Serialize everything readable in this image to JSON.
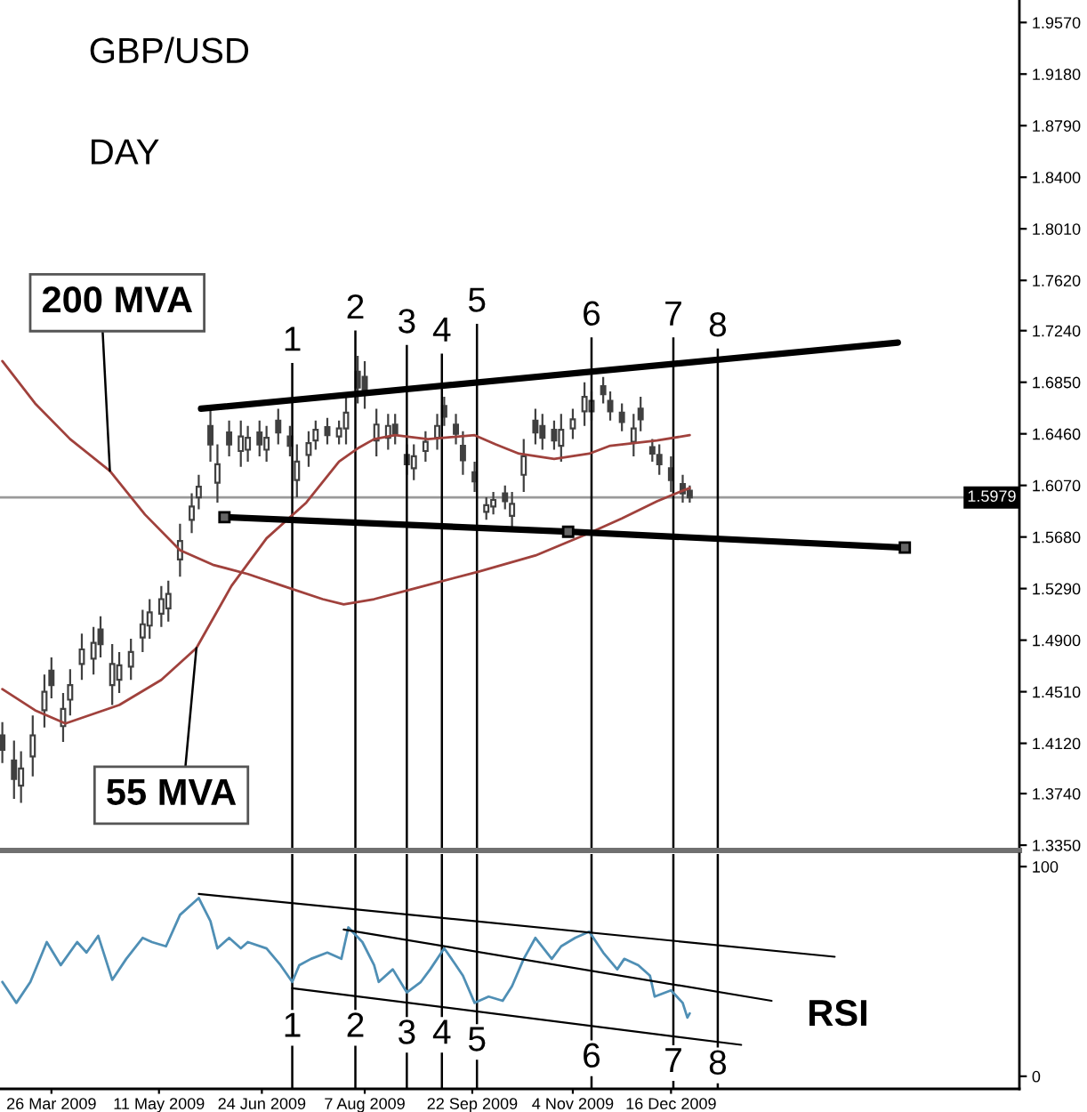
{
  "chart_data": [
    {
      "type": "candlestick",
      "title": "GBP/USD",
      "subtitle": "DAY",
      "color": "#404040",
      "x": [
        "2009-03-05",
        "2009-03-10",
        "2009-03-13",
        "2009-03-18",
        "2009-03-23",
        "2009-03-26",
        "2009-03-31",
        "2009-04-03",
        "2009-04-08",
        "2009-04-13",
        "2009-04-16",
        "2009-04-21",
        "2009-04-24",
        "2009-04-29",
        "2009-05-04",
        "2009-05-07",
        "2009-05-12",
        "2009-05-15",
        "2009-05-20",
        "2009-05-25",
        "2009-05-28",
        "2009-06-02",
        "2009-06-05",
        "2009-06-10",
        "2009-06-15",
        "2009-06-18",
        "2009-06-23",
        "2009-06-26",
        "2009-07-01",
        "2009-07-06",
        "2009-07-09",
        "2009-07-14",
        "2009-07-17",
        "2009-07-22",
        "2009-07-27",
        "2009-07-30",
        "2009-08-04",
        "2009-08-07",
        "2009-08-12",
        "2009-08-17",
        "2009-08-20",
        "2009-08-25",
        "2009-08-28",
        "2009-09-02",
        "2009-09-07",
        "2009-09-10",
        "2009-09-15",
        "2009-09-18",
        "2009-09-23",
        "2009-09-28",
        "2009-10-01",
        "2009-10-06",
        "2009-10-09",
        "2009-10-14",
        "2009-10-19",
        "2009-10-22",
        "2009-10-27",
        "2009-10-30",
        "2009-11-04",
        "2009-11-09",
        "2009-11-12",
        "2009-11-17",
        "2009-11-20",
        "2009-11-25",
        "2009-11-30",
        "2009-12-03",
        "2009-12-08",
        "2009-12-11",
        "2009-12-16",
        "2009-12-21",
        "2009-12-24"
      ],
      "ohlc": [
        [
          1.418,
          1.428,
          1.397,
          1.407
        ],
        [
          1.399,
          1.414,
          1.37,
          1.385
        ],
        [
          1.38,
          1.406,
          1.367,
          1.393
        ],
        [
          1.402,
          1.433,
          1.387,
          1.418
        ],
        [
          1.437,
          1.464,
          1.424,
          1.451
        ],
        [
          1.467,
          1.477,
          1.446,
          1.456
        ],
        [
          1.425,
          1.45,
          1.413,
          1.438
        ],
        [
          1.445,
          1.468,
          1.433,
          1.456
        ],
        [
          1.472,
          1.495,
          1.46,
          1.483
        ],
        [
          1.476,
          1.5,
          1.464,
          1.488
        ],
        [
          1.498,
          1.508,
          1.477,
          1.487
        ],
        [
          1.456,
          1.487,
          1.441,
          1.472
        ],
        [
          1.46,
          1.481,
          1.45,
          1.471
        ],
        [
          1.47,
          1.491,
          1.46,
          1.481
        ],
        [
          1.492,
          1.513,
          1.481,
          1.502
        ],
        [
          1.501,
          1.521,
          1.491,
          1.511
        ],
        [
          1.51,
          1.531,
          1.5,
          1.521
        ],
        [
          1.514,
          1.535,
          1.504,
          1.525
        ],
        [
          1.551,
          1.578,
          1.538,
          1.565
        ],
        [
          1.581,
          1.601,
          1.571,
          1.591
        ],
        [
          1.598,
          1.615,
          1.589,
          1.606
        ],
        [
          1.652,
          1.665,
          1.625,
          1.638
        ],
        [
          1.609,
          1.638,
          1.594,
          1.623
        ],
        [
          1.647,
          1.656,
          1.629,
          1.638
        ],
        [
          1.633,
          1.656,
          1.621,
          1.644
        ],
        [
          1.634,
          1.652,
          1.625,
          1.643
        ],
        [
          1.647,
          1.656,
          1.629,
          1.638
        ],
        [
          1.634,
          1.652,
          1.625,
          1.643
        ],
        [
          1.656,
          1.665,
          1.638,
          1.647
        ],
        [
          1.644,
          1.652,
          1.629,
          1.637
        ],
        [
          1.611,
          1.638,
          1.598,
          1.625
        ],
        [
          1.63,
          1.648,
          1.621,
          1.639
        ],
        [
          1.641,
          1.656,
          1.634,
          1.649
        ],
        [
          1.651,
          1.658,
          1.638,
          1.645
        ],
        [
          1.644,
          1.656,
          1.638,
          1.65
        ],
        [
          1.65,
          1.674,
          1.638,
          1.662
        ],
        [
          1.693,
          1.705,
          1.669,
          1.681
        ],
        [
          1.689,
          1.701,
          1.665,
          1.677
        ],
        [
          1.641,
          1.665,
          1.629,
          1.653
        ],
        [
          1.643,
          1.661,
          1.634,
          1.652
        ],
        [
          1.653,
          1.661,
          1.638,
          1.646
        ],
        [
          1.63,
          1.638,
          1.615,
          1.623
        ],
        [
          1.62,
          1.638,
          1.611,
          1.629
        ],
        [
          1.633,
          1.648,
          1.625,
          1.64
        ],
        [
          1.643,
          1.661,
          1.634,
          1.652
        ],
        [
          1.667,
          1.674,
          1.652,
          1.659
        ],
        [
          1.653,
          1.661,
          1.638,
          1.646
        ],
        [
          1.637,
          1.648,
          1.615,
          1.626
        ],
        [
          1.617,
          1.625,
          1.602,
          1.61
        ],
        [
          1.587,
          1.598,
          1.581,
          1.592
        ],
        [
          1.591,
          1.602,
          1.585,
          1.596
        ],
        [
          1.601,
          1.607,
          1.589,
          1.595
        ],
        [
          1.584,
          1.602,
          1.575,
          1.593
        ],
        [
          1.615,
          1.642,
          1.602,
          1.629
        ],
        [
          1.656,
          1.665,
          1.638,
          1.647
        ],
        [
          1.652,
          1.661,
          1.634,
          1.643
        ],
        [
          1.649,
          1.656,
          1.634,
          1.641
        ],
        [
          1.637,
          1.661,
          1.625,
          1.649
        ],
        [
          1.65,
          1.665,
          1.642,
          1.657
        ],
        [
          1.663,
          1.685,
          1.652,
          1.674
        ],
        [
          1.663,
          1.678,
          1.656,
          1.671
        ],
        [
          1.682,
          1.689,
          1.669,
          1.676
        ],
        [
          1.671,
          1.678,
          1.656,
          1.663
        ],
        [
          1.662,
          1.669,
          1.648,
          1.655
        ],
        [
          1.64,
          1.661,
          1.629,
          1.65
        ],
        [
          1.665,
          1.674,
          1.648,
          1.657
        ],
        [
          1.636,
          1.642,
          1.625,
          1.631
        ],
        [
          1.63,
          1.638,
          1.615,
          1.623
        ],
        [
          1.62,
          1.629,
          1.602,
          1.611
        ],
        [
          1.608,
          1.615,
          1.594,
          1.601
        ],
        [
          1.603,
          1.607,
          1.594,
          1.598
        ]
      ],
      "series": [
        {
          "type": "line",
          "name": "200 MVA",
          "color": "#a0413c",
          "x": [
            "2009-03-05",
            "2009-03-19",
            "2009-04-03",
            "2009-04-20",
            "2009-05-05",
            "2009-05-20",
            "2009-06-03",
            "2009-06-18",
            "2009-07-03",
            "2009-07-20",
            "2009-07-29",
            "2009-08-11",
            "2009-08-26",
            "2009-09-25",
            "2009-10-19",
            "2009-11-11",
            "2009-11-25",
            "2009-12-10",
            "2009-12-21",
            "2009-12-24"
          ],
          "values": [
            1.701,
            1.669,
            1.642,
            1.618,
            1.585,
            1.558,
            1.547,
            1.54,
            1.531,
            1.521,
            1.517,
            1.521,
            1.528,
            1.542,
            1.554,
            1.571,
            1.582,
            1.595,
            1.603,
            1.605
          ]
        },
        {
          "type": "line",
          "name": "55 MVA",
          "color": "#a0413c",
          "x": [
            "2009-03-05",
            "2009-03-19",
            "2009-04-01",
            "2009-04-24",
            "2009-05-12",
            "2009-05-27",
            "2009-06-11",
            "2009-06-26",
            "2009-07-13",
            "2009-07-27",
            "2009-08-04",
            "2009-08-11",
            "2009-08-20",
            "2009-09-03",
            "2009-09-23",
            "2009-10-02",
            "2009-10-12",
            "2009-10-27",
            "2009-11-11",
            "2009-11-20",
            "2009-12-10",
            "2009-12-24"
          ],
          "values": [
            1.453,
            1.437,
            1.427,
            1.441,
            1.46,
            1.484,
            1.531,
            1.567,
            1.594,
            1.625,
            1.635,
            1.642,
            1.645,
            1.642,
            1.645,
            1.638,
            1.631,
            1.627,
            1.631,
            1.637,
            1.641,
            1.645
          ]
        },
        {
          "type": "line",
          "color": "#000000",
          "x": [
            "2009-05-29",
            "2010-03-23"
          ],
          "values": [
            1.665,
            1.715
          ]
        },
        {
          "type": "line",
          "color": "#000000",
          "marker": "square",
          "x": [
            "2009-06-08",
            "2009-11-02",
            "2010-03-26"
          ],
          "values": [
            1.583,
            1.572,
            1.56
          ]
        }
      ],
      "ref_lines": [
        {
          "axis": "y",
          "value": 1.5979,
          "label": "1.5979",
          "color": "#9a9a9a"
        },
        {
          "axis": "x",
          "value": "2009-07-07",
          "label": "1",
          "color": "#000000"
        },
        {
          "axis": "x",
          "value": "2009-08-03",
          "label": "2",
          "color": "#000000"
        },
        {
          "axis": "x",
          "value": "2009-08-25",
          "label": "3",
          "color": "#000000"
        },
        {
          "axis": "x",
          "value": "2009-09-09",
          "label": "4",
          "color": "#000000"
        },
        {
          "axis": "x",
          "value": "2009-09-24",
          "label": "5",
          "color": "#000000"
        },
        {
          "axis": "x",
          "value": "2009-11-12",
          "label": "6",
          "color": "#000000"
        },
        {
          "axis": "x",
          "value": "2009-12-17",
          "label": "7",
          "color": "#000000"
        },
        {
          "axis": "x",
          "value": "2010-01-05",
          "label": "8",
          "color": "#000000"
        }
      ],
      "xlim": [
        "2009-03-04",
        "2010-05-14"
      ],
      "ylim": [
        1.331,
        1.974
      ],
      "yticks": [
        {
          "value": 1.957,
          "label": "1.9570"
        },
        {
          "value": 1.918,
          "label": "1.9180"
        },
        {
          "value": 1.879,
          "label": "1.8790"
        },
        {
          "value": 1.84,
          "label": "1.8400"
        },
        {
          "value": 1.801,
          "label": "1.8010"
        },
        {
          "value": 1.762,
          "label": "1.7620"
        },
        {
          "value": 1.724,
          "label": "1.7240"
        },
        {
          "value": 1.685,
          "label": "1.6850"
        },
        {
          "value": 1.646,
          "label": "1.6460"
        },
        {
          "value": 1.607,
          "label": "1.6070"
        },
        {
          "value": 1.568,
          "label": "1.5680"
        },
        {
          "value": 1.529,
          "label": "1.5290"
        },
        {
          "value": 1.49,
          "label": "1.4900"
        },
        {
          "value": 1.451,
          "label": "1.4510"
        },
        {
          "value": 1.412,
          "label": "1.4120"
        },
        {
          "value": 1.374,
          "label": "1.3740"
        },
        {
          "value": 1.335,
          "label": "1.3350"
        }
      ],
      "tick_labels": "y"
    },
    {
      "type": "line",
      "annotations": [
        "RSI"
      ],
      "series": [
        {
          "color": "#4f8fb5",
          "x": [
            "2009-03-05",
            "2009-03-11",
            "2009-03-17",
            "2009-03-24",
            "2009-03-30",
            "2009-04-06",
            "2009-04-10",
            "2009-04-15",
            "2009-04-21",
            "2009-04-27",
            "2009-05-04",
            "2009-05-08",
            "2009-05-14",
            "2009-05-20",
            "2009-05-28",
            "2009-06-02",
            "2009-06-05",
            "2009-06-10",
            "2009-06-15",
            "2009-06-18",
            "2009-06-26",
            "2009-07-02",
            "2009-07-07",
            "2009-07-10",
            "2009-07-15",
            "2009-07-22",
            "2009-07-28",
            "2009-07-31",
            "2009-08-06",
            "2009-08-11",
            "2009-08-13",
            "2009-08-19",
            "2009-08-25",
            "2009-08-31",
            "2009-09-04",
            "2009-09-10",
            "2009-09-15",
            "2009-09-18",
            "2009-09-23",
            "2009-09-29",
            "2009-10-05",
            "2009-10-09",
            "2009-10-14",
            "2009-10-19",
            "2009-10-26",
            "2009-10-30",
            "2009-11-05",
            "2009-11-11",
            "2009-11-17",
            "2009-11-23",
            "2009-11-26",
            "2009-12-02",
            "2009-12-07",
            "2009-12-09",
            "2009-12-16",
            "2009-12-21",
            "2009-12-23",
            "2009-12-24"
          ],
          "values": [
            45,
            35,
            45,
            64,
            53,
            64,
            59,
            67,
            46,
            56,
            66,
            64,
            62,
            77,
            85,
            74,
            61,
            66,
            61,
            64,
            61,
            53,
            45,
            53,
            56,
            59,
            56,
            71,
            64,
            53,
            45,
            51,
            40,
            45,
            51,
            61,
            53,
            48,
            35,
            38,
            36,
            43,
            56,
            66,
            56,
            62,
            66,
            69,
            59,
            51,
            56,
            53,
            48,
            38,
            41,
            35,
            28,
            30
          ]
        },
        {
          "color": "#000000",
          "x": [
            "2009-05-28",
            "2010-02-24"
          ],
          "values": [
            87,
            57
          ]
        },
        {
          "color": "#000000",
          "x": [
            "2009-07-29",
            "2010-01-28"
          ],
          "values": [
            70,
            36
          ]
        },
        {
          "color": "#000000",
          "x": [
            "2009-07-07",
            "2010-01-15"
          ],
          "values": [
            42,
            15
          ]
        }
      ],
      "ref_lines": [
        {
          "axis": "x",
          "value": "2009-07-07",
          "label": "1",
          "color": "#000000"
        },
        {
          "axis": "x",
          "value": "2009-08-03",
          "label": "2",
          "color": "#000000"
        },
        {
          "axis": "x",
          "value": "2009-08-25",
          "label": "3",
          "color": "#000000"
        },
        {
          "axis": "x",
          "value": "2009-09-09",
          "label": "4",
          "color": "#000000"
        },
        {
          "axis": "x",
          "value": "2009-09-24",
          "label": "5",
          "color": "#000000"
        },
        {
          "axis": "x",
          "value": "2009-11-12",
          "label": "6",
          "color": "#000000"
        },
        {
          "axis": "x",
          "value": "2009-12-17",
          "label": "7",
          "color": "#000000"
        },
        {
          "axis": "x",
          "value": "2010-01-05",
          "label": "8",
          "color": "#000000"
        }
      ],
      "xlim": [
        "2009-03-04",
        "2010-05-14"
      ],
      "ylim": [
        -6,
        106
      ],
      "yticks": [
        0,
        100
      ],
      "xticks": [
        {
          "value": "2009-03-26",
          "label": "26 Mar 2009"
        },
        {
          "value": "2009-05-11",
          "label": "11 May 2009"
        },
        {
          "value": "2009-06-24",
          "label": "24 Jun 2009"
        },
        {
          "value": "2009-08-07",
          "label": "7 Aug 2009"
        },
        {
          "value": "2009-09-22",
          "label": "22 Sep 2009"
        },
        {
          "value": "2009-11-04",
          "label": "4 Nov 2009"
        },
        {
          "value": "2009-12-16",
          "label": "16 Dec 2009"
        }
      ]
    }
  ]
}
